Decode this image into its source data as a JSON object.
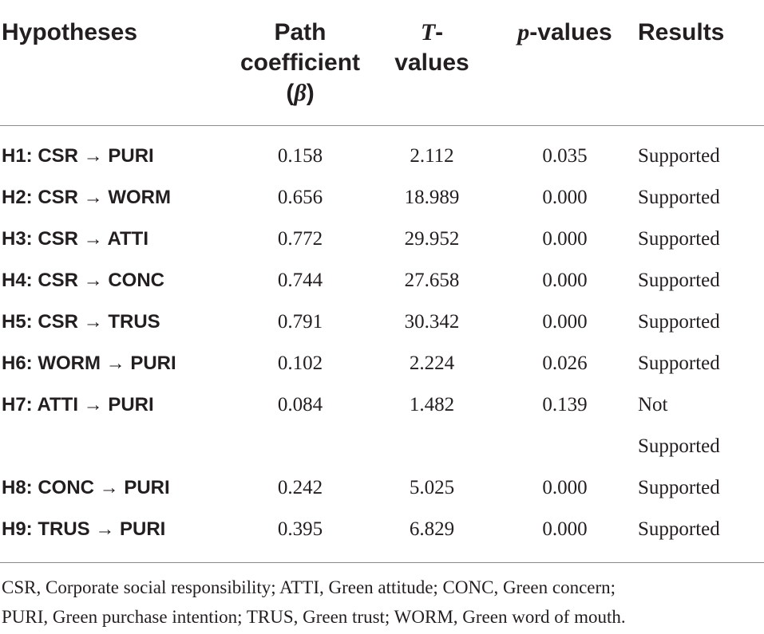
{
  "table": {
    "headers": {
      "hypotheses": "Hypotheses",
      "path_line1": "Path",
      "path_line2": "coefficient",
      "path_line3_open": "(",
      "path_line3_beta": "β",
      "path_line3_close": ")",
      "t_italic": "T",
      "t_dash": "-",
      "t_line2": "values",
      "p_italic": "p",
      "p_rest": "-values",
      "results": "Results"
    },
    "rows": [
      {
        "hypothesis": "H1: CSR → PURI",
        "path": "0.158",
        "t": "2.112",
        "p": "0.035",
        "result": "Supported"
      },
      {
        "hypothesis": "H2: CSR → WORM",
        "path": "0.656",
        "t": "18.989",
        "p": "0.000",
        "result": "Supported"
      },
      {
        "hypothesis": "H3: CSR → ATTI",
        "path": "0.772",
        "t": "29.952",
        "p": "0.000",
        "result": "Supported"
      },
      {
        "hypothesis": "H4: CSR → CONC",
        "path": "0.744",
        "t": "27.658",
        "p": "0.000",
        "result": "Supported"
      },
      {
        "hypothesis": "H5: CSR → TRUS",
        "path": "0.791",
        "t": "30.342",
        "p": "0.000",
        "result": "Supported"
      },
      {
        "hypothesis": "H6: WORM → PURI",
        "path": "0.102",
        "t": "2.224",
        "p": "0.026",
        "result": "Supported"
      },
      {
        "hypothesis": "H7: ATTI → PURI",
        "path": "0.084",
        "t": "1.482",
        "p": "0.139",
        "result_line1": "Not",
        "result_line2": "Supported"
      },
      {
        "hypothesis": "H8: CONC → PURI",
        "path": "0.242",
        "t": "5.025",
        "p": "0.000",
        "result": "Supported"
      },
      {
        "hypothesis": "H9: TRUS → PURI",
        "path": "0.395",
        "t": "6.829",
        "p": "0.000",
        "result": "Supported"
      }
    ]
  },
  "footnote": {
    "line1": "CSR, Corporate social responsibility; ATTI, Green attitude; CONC, Green concern;",
    "line2": "PURI, Green purchase intention; TRUS, Green trust; WORM, Green word of mouth."
  }
}
